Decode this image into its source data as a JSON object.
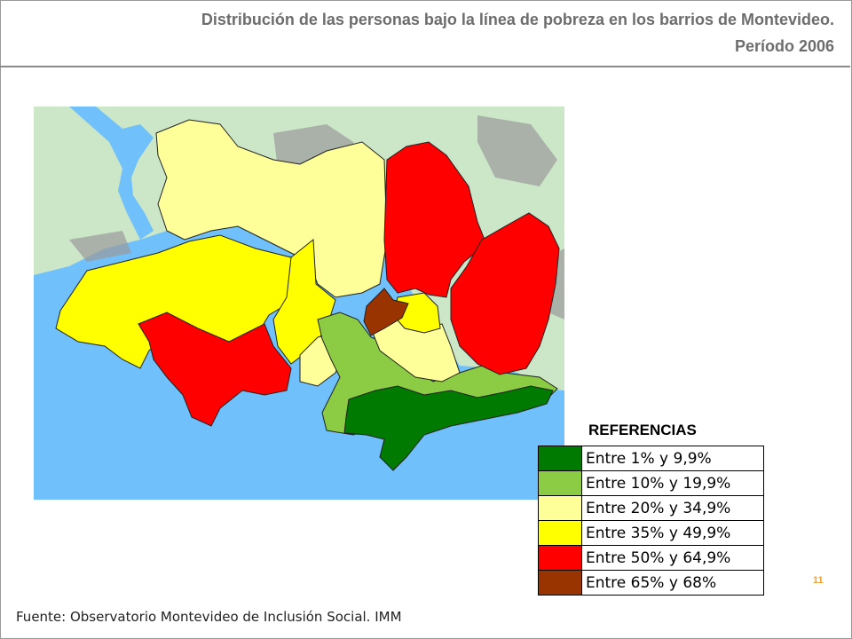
{
  "title": {
    "line1": "Distribución de las personas bajo la línea de pobreza en los barrios de Montevideo.",
    "line2": "Período 2006"
  },
  "legend": {
    "title": "REFERENCIAS",
    "items": [
      {
        "label": "Entre 1% y 9,9%",
        "color": "#007a00"
      },
      {
        "label": "Entre 10% y 19,9%",
        "color": "#8ccc44"
      },
      {
        "label": "Entre 20% y 34,9%",
        "color": "#ffff99"
      },
      {
        "label": "Entre 35% y 49,9%",
        "color": "#ffff00"
      },
      {
        "label": "Entre 50% y 64,9%",
        "color": "#ff0000"
      },
      {
        "label": "Entre 65% y 68%",
        "color": "#993300"
      }
    ]
  },
  "map": {
    "water_color": "#6fc0fb",
    "land_color": "#cce6c8",
    "urban_color": "#9a9a9a"
  },
  "page_number": "11",
  "source": "Fuente: Observatorio Montevideo de Inclusión Social. IMM"
}
